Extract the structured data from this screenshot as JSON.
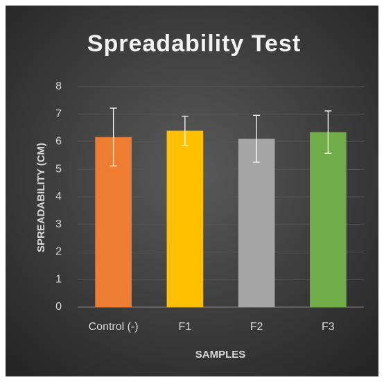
{
  "chart_data": {
    "type": "bar",
    "title": "Spreadability Test",
    "x_label": "SAMPLES",
    "y_label": "SPREADABILITY (CM)",
    "categories": [
      "Control (-)",
      "F1",
      "F2",
      "F3"
    ],
    "values": [
      6.17,
      6.4,
      6.11,
      6.35
    ],
    "errors": [
      1.05,
      0.53,
      0.85,
      0.77
    ],
    "colors": [
      "#ED7D31",
      "#FFC000",
      "#A5A5A5",
      "#70AD47"
    ],
    "ylim": [
      0,
      8
    ],
    "yticks": [
      0,
      1,
      2,
      3,
      4,
      5,
      6,
      7,
      8
    ],
    "grid": true
  }
}
